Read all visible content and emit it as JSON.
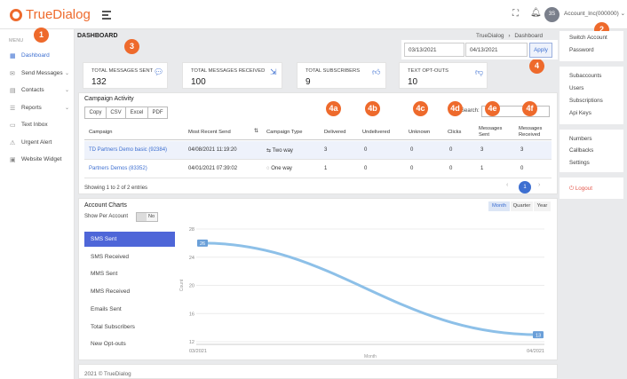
{
  "brand": {
    "name": "TrueDialog"
  },
  "topbar": {
    "avatar_initials": "3S",
    "account_label": "Account_Inc(000000)"
  },
  "sidebar": {
    "menu_label": "MENU",
    "items": [
      {
        "label": "Dashboard",
        "icon": "dashboard-icon",
        "glyph": "▦",
        "active": true
      },
      {
        "label": "Send Messages",
        "icon": "envelope-icon",
        "glyph": "✉",
        "chevron": true
      },
      {
        "label": "Contacts",
        "icon": "contacts-icon",
        "glyph": "▤",
        "chevron": true
      },
      {
        "label": "Reports",
        "icon": "reports-icon",
        "glyph": "☰",
        "chevron": true
      },
      {
        "label": "Text Inbox",
        "icon": "inbox-icon",
        "glyph": "▭"
      },
      {
        "label": "Urgent Alert",
        "icon": "alert-icon",
        "glyph": "⚠"
      },
      {
        "label": "Website Widget",
        "icon": "widget-icon",
        "glyph": "▣"
      }
    ]
  },
  "badges": {
    "b1": "1",
    "b2": "2",
    "b3": "3",
    "b4": "4",
    "b4a": "4a",
    "b4b": "4b",
    "b4c": "4c",
    "b4d": "4d",
    "b4e": "4e",
    "b4f": "4f"
  },
  "header": {
    "title": "DASHBOARD",
    "breadcrumb_root": "TrueDialog",
    "breadcrumb_sep": "›",
    "breadcrumb_current": "Dashboard"
  },
  "date_filter": {
    "start": "03/13/2021",
    "end": "04/13/2021",
    "apply_label": "Apply"
  },
  "stats": [
    {
      "label": "TOTAL MESSAGES SENT",
      "value": "132",
      "icon": "chat-icon"
    },
    {
      "label": "TOTAL MESSAGES RECEIVED",
      "value": "100",
      "icon": "inbox-arrow-icon"
    },
    {
      "label": "TOTAL SUBSCRIBERS",
      "value": "9",
      "icon": "thumbs-up-icon"
    },
    {
      "label": "TEXT OPT-OUTS",
      "value": "10",
      "icon": "thumbs-down-icon"
    }
  ],
  "campaign": {
    "title": "Campaign Activity",
    "export_buttons": [
      "Copy",
      "CSV",
      "Excel",
      "PDF"
    ],
    "search_label": "Search:",
    "columns": [
      "Campaign",
      "Most Recent Send",
      "Campaign Type",
      "Delivered",
      "Undelivered",
      "Unknown",
      "Clicks",
      "Messages Sent",
      "Messages Received"
    ],
    "rows": [
      {
        "campaign": "TD Partners Demo basic (92384)",
        "recent": "04/08/2021 11:19:20",
        "type": "Two way",
        "type_icon": "two-way-icon",
        "delivered": "3",
        "undelivered": "0",
        "unknown": "0",
        "clicks": "0",
        "sent": "3",
        "received": "3"
      },
      {
        "campaign": "Partners Demos (83352)",
        "recent": "04/01/2021 07:39:02",
        "type": "One way",
        "type_icon": "one-way-icon",
        "delivered": "1",
        "undelivered": "0",
        "unknown": "0",
        "clicks": "0",
        "sent": "1",
        "received": "0"
      }
    ],
    "footer": "Showing 1 to 2 of 2 entries",
    "pagination": {
      "prev": "‹",
      "page": "1",
      "next": "›"
    }
  },
  "account_charts": {
    "title": "Account Charts",
    "show_per_account_label": "Show Per Account",
    "toggle_label": "No",
    "periods": [
      "Month",
      "Quarter",
      "Year"
    ],
    "active_period": "Month",
    "menu": [
      "SMS Sent",
      "SMS Received",
      "MMS Sent",
      "MMS Received",
      "Emails Sent",
      "Total Subscribers",
      "New Opt-outs"
    ],
    "active_menu": "SMS Sent"
  },
  "chart_data": {
    "type": "line",
    "x": [
      "03/2021",
      "04/2021"
    ],
    "y": [
      26,
      13
    ],
    "start_label": "26",
    "end_label": "13",
    "ylabel": "Count",
    "xlabel": "Month",
    "yticks": [
      "28",
      "24",
      "20",
      "16",
      "12"
    ],
    "ylim": [
      12,
      28
    ],
    "grid": true,
    "line_color": "#8dc0e8"
  },
  "right_panel": {
    "group1": [
      "Switch Account",
      "Password"
    ],
    "group2": [
      "Subaccounts",
      "Users",
      "Subscriptions",
      "Api Keys"
    ],
    "group3": [
      "Numbers",
      "Callbacks",
      "Settings"
    ],
    "logout": "Logout"
  },
  "footer": {
    "text": "2021 © TrueDialog"
  },
  "colors": {
    "accent": "#3d6fd1",
    "brand": "#ee6a2c",
    "badge": "#ee6a2c",
    "active_menu": "#4e66d8"
  }
}
